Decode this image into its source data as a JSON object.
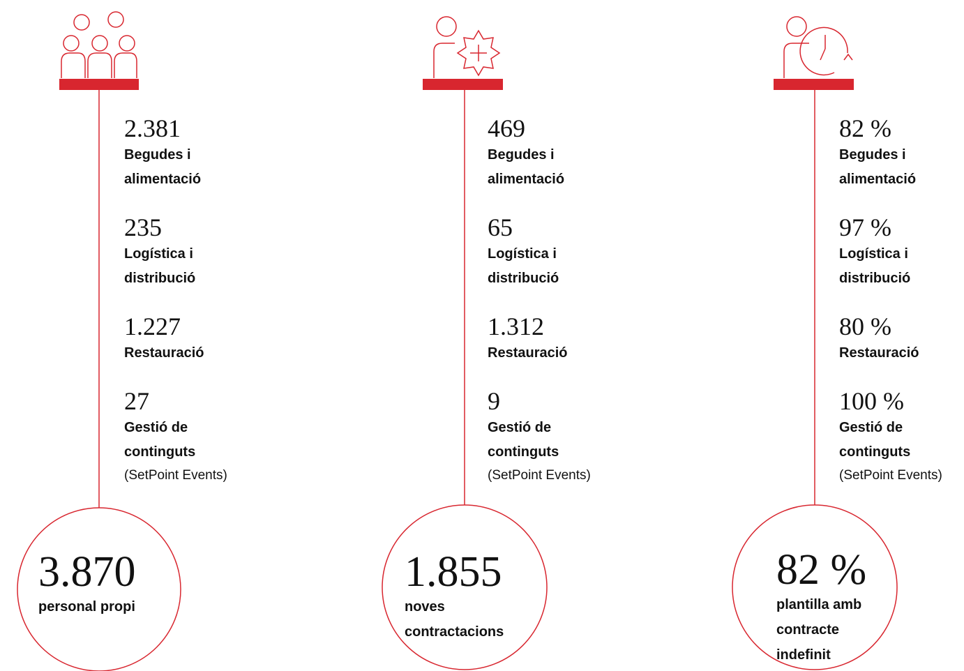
{
  "columns": [
    {
      "items": [
        {
          "value": "2.381",
          "label": "Begudes i alimentació"
        },
        {
          "value": "235",
          "label": "Logística i distribució"
        },
        {
          "value": "1.227",
          "label": "Restauració"
        },
        {
          "value": "27",
          "label": "Gestió de continguts",
          "note": "(SetPoint Events)"
        }
      ],
      "total": {
        "value": "3.870",
        "label": "personal propi"
      }
    },
    {
      "items": [
        {
          "value": "469",
          "label": "Begudes i alimentació"
        },
        {
          "value": "65",
          "label": "Logística i distribució"
        },
        {
          "value": "1.312",
          "label": "Restauració"
        },
        {
          "value": "9",
          "label": "Gestió de continguts",
          "note": "(SetPoint Events)"
        }
      ],
      "total": {
        "value": "1.855",
        "label": "noves contractacions"
      }
    },
    {
      "items": [
        {
          "value": "82 %",
          "label": "Begudes i alimentació"
        },
        {
          "value": "97 %",
          "label": "Logística i distribució"
        },
        {
          "value": "80 %",
          "label": "Restauració"
        },
        {
          "value": "100 %",
          "label": "Gestió de continguts",
          "note": "(SetPoint Events)"
        }
      ],
      "total": {
        "value": "82 %",
        "label": "plantilla amb contracte indefinit"
      }
    }
  ]
}
